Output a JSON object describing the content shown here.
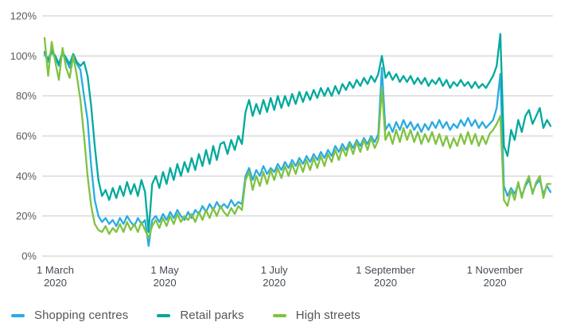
{
  "legend": {
    "items": [
      {
        "label": "Shopping centres",
        "color": "#29abe2"
      },
      {
        "label": "Retail parks",
        "color": "#00a99d"
      },
      {
        "label": "High streets",
        "color": "#7fc241"
      }
    ]
  },
  "colors": {
    "gridline": "#c9c9c9",
    "ytick_text": "#595959",
    "xtick_text": "#454c54"
  },
  "chart_data": {
    "type": "line",
    "title": "",
    "xlabel": "",
    "ylabel": "",
    "grid": "horizontal only",
    "legend_position": "bottom-left",
    "ylim": [
      0,
      120
    ],
    "yticks": [
      0,
      20,
      40,
      60,
      80,
      100,
      120
    ],
    "ytick_labels": [
      "0%",
      "20%",
      "40%",
      "60%",
      "80%",
      "100%",
      "120%"
    ],
    "xticks": [
      {
        "day": 6,
        "line1": "1 March",
        "line2": "2020"
      },
      {
        "day": 67,
        "line1": "1 May",
        "line2": "2020"
      },
      {
        "day": 128,
        "line1": "1 July",
        "line2": "2020"
      },
      {
        "day": 190,
        "line1": "1 September",
        "line2": "2020"
      },
      {
        "day": 251,
        "line1": "1 November",
        "line2": "2020"
      }
    ],
    "x_unit": "days from 24 February 2020, values are footfall percent",
    "x_days": [
      0,
      2,
      4,
      6,
      8,
      10,
      12,
      14,
      16,
      18,
      20,
      22,
      24,
      26,
      28,
      30,
      32,
      34,
      36,
      38,
      40,
      42,
      44,
      46,
      48,
      50,
      52,
      54,
      56,
      58,
      60,
      62,
      64,
      66,
      68,
      70,
      72,
      74,
      76,
      78,
      80,
      82,
      84,
      86,
      88,
      90,
      92,
      94,
      96,
      98,
      100,
      102,
      104,
      106,
      108,
      110,
      112,
      114,
      116,
      118,
      120,
      122,
      124,
      126,
      128,
      130,
      132,
      134,
      136,
      138,
      140,
      142,
      144,
      146,
      148,
      150,
      152,
      154,
      156,
      158,
      160,
      162,
      164,
      166,
      168,
      170,
      172,
      174,
      176,
      178,
      180,
      182,
      184,
      186,
      188,
      190,
      192,
      194,
      196,
      198,
      200,
      202,
      204,
      206,
      208,
      210,
      212,
      214,
      216,
      218,
      220,
      222,
      224,
      226,
      228,
      230,
      232,
      234,
      236,
      238,
      240,
      242,
      244,
      246,
      248,
      250,
      252,
      254,
      256,
      258,
      260,
      262,
      264,
      266,
      268,
      270,
      272,
      274,
      276,
      278,
      280,
      282
    ],
    "series": [
      {
        "name": "Shopping centres",
        "color": "#29abe2",
        "values": [
          101,
          97,
          102,
          99,
          95,
          101,
          98,
          94,
          99,
          96,
          93,
          80,
          68,
          45,
          28,
          20,
          17,
          19,
          16,
          18,
          15,
          19,
          16,
          20,
          17,
          15,
          19,
          16,
          18,
          5,
          18,
          20,
          17,
          21,
          18,
          22,
          19,
          23,
          20,
          18,
          22,
          19,
          23,
          21,
          25,
          22,
          26,
          23,
          27,
          24,
          26,
          24,
          28,
          25,
          27,
          26,
          40,
          44,
          38,
          43,
          40,
          45,
          41,
          44,
          42,
          46,
          43,
          47,
          44,
          48,
          45,
          49,
          46,
          50,
          47,
          51,
          48,
          52,
          49,
          53,
          50,
          55,
          52,
          56,
          53,
          57,
          54,
          58,
          55,
          59,
          56,
          60,
          57,
          61,
          94,
          63,
          66,
          62,
          67,
          63,
          68,
          64,
          67,
          63,
          66,
          62,
          66,
          63,
          67,
          64,
          68,
          64,
          67,
          63,
          66,
          64,
          68,
          65,
          69,
          65,
          68,
          64,
          67,
          64,
          66,
          68,
          74,
          91,
          35,
          30,
          34,
          31,
          36,
          30,
          35,
          38,
          32,
          36,
          38,
          31,
          35,
          32
        ]
      },
      {
        "name": "Retail parks",
        "color": "#00a99d",
        "values": [
          102,
          98,
          103,
          100,
          96,
          102,
          99,
          96,
          101,
          97,
          95,
          97,
          90,
          75,
          55,
          38,
          30,
          33,
          28,
          34,
          29,
          35,
          30,
          37,
          31,
          36,
          30,
          38,
          32,
          12,
          36,
          40,
          34,
          42,
          36,
          44,
          38,
          46,
          40,
          47,
          42,
          49,
          43,
          51,
          45,
          53,
          46,
          55,
          48,
          56,
          57,
          51,
          58,
          53,
          60,
          56,
          72,
          78,
          70,
          76,
          71,
          78,
          72,
          79,
          73,
          80,
          74,
          80,
          75,
          81,
          76,
          82,
          77,
          82,
          78,
          83,
          79,
          84,
          80,
          84,
          80,
          85,
          81,
          86,
          83,
          87,
          84,
          88,
          85,
          89,
          86,
          90,
          87,
          91,
          100,
          89,
          92,
          88,
          91,
          87,
          90,
          87,
          90,
          86,
          89,
          86,
          89,
          85,
          88,
          86,
          89,
          85,
          88,
          84,
          87,
          85,
          88,
          85,
          87,
          84,
          87,
          84,
          86,
          84,
          87,
          90,
          95,
          111,
          55,
          50,
          63,
          58,
          68,
          62,
          70,
          73,
          66,
          70,
          74,
          64,
          68,
          65
        ]
      },
      {
        "name": "High streets",
        "color": "#7fc241",
        "values": [
          109,
          90,
          107,
          97,
          88,
          104,
          94,
          89,
          100,
          90,
          78,
          60,
          40,
          25,
          16,
          13,
          12,
          15,
          11,
          14,
          12,
          16,
          12,
          17,
          13,
          16,
          12,
          17,
          13,
          9,
          15,
          18,
          14,
          19,
          15,
          20,
          16,
          21,
          17,
          20,
          18,
          21,
          17,
          22,
          18,
          23,
          19,
          24,
          20,
          25,
          22,
          20,
          24,
          21,
          25,
          23,
          38,
          42,
          33,
          40,
          35,
          42,
          36,
          43,
          38,
          44,
          39,
          45,
          40,
          46,
          41,
          47,
          42,
          48,
          43,
          49,
          44,
          50,
          45,
          51,
          47,
          53,
          48,
          54,
          50,
          56,
          51,
          57,
          52,
          58,
          53,
          59,
          54,
          58,
          84,
          58,
          62,
          56,
          63,
          57,
          64,
          58,
          63,
          57,
          62,
          56,
          61,
          57,
          62,
          56,
          61,
          55,
          60,
          54,
          59,
          55,
          61,
          56,
          62,
          56,
          61,
          55,
          60,
          56,
          61,
          63,
          66,
          70,
          28,
          25,
          33,
          28,
          37,
          29,
          36,
          40,
          31,
          37,
          40,
          29,
          36,
          36
        ]
      }
    ]
  }
}
